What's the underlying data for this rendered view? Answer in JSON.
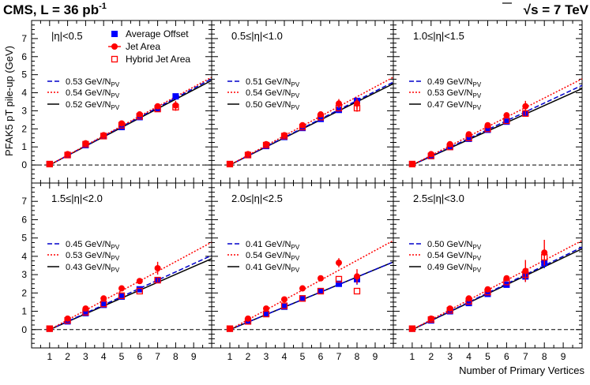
{
  "header": {
    "left_title": "CMS, L = 36 pb",
    "left_title_sup": "-1",
    "right_title_sqrt": "√",
    "right_title": "s = 7 TeV"
  },
  "y_axis_label": "PFAK5 pT pile-up (GeV)",
  "x_axis_label": "Number of Primary Vertices",
  "colors": {
    "average_offset": "#0000ff",
    "jet_area": "#ff0000",
    "hybrid_jet_area": "#ff0000",
    "fit_average": "#0000cc",
    "fit_jet_area": "#ff0000",
    "fit_hybrid": "#000000"
  },
  "legend": {
    "entries": [
      "Average Offset",
      "Jet Area",
      "Hybrid Jet Area"
    ]
  },
  "chart_data": [
    {
      "type": "scatter",
      "eta_label": "|η|<0.5",
      "x": [
        1,
        2,
        3,
        4,
        5,
        6,
        7,
        8
      ],
      "xlim": [
        0,
        10
      ],
      "ylim": [
        -1,
        8
      ],
      "xticks": [
        1,
        2,
        3,
        4,
        5,
        6,
        7,
        8,
        9
      ],
      "yticks": [
        0,
        1,
        2,
        3,
        4,
        5,
        6,
        7
      ],
      "series": [
        {
          "name": "Average Offset",
          "values": [
            0.05,
            0.55,
            1.1,
            1.6,
            2.1,
            2.65,
            3.15,
            3.8
          ],
          "errors": [
            0,
            0,
            0,
            0,
            0,
            0,
            0,
            0.1
          ]
        },
        {
          "name": "Jet Area",
          "values": [
            0.05,
            0.6,
            1.2,
            1.65,
            2.3,
            2.8,
            3.25,
            3.3
          ],
          "errors": [
            0,
            0,
            0,
            0,
            0,
            0,
            0.15,
            0.25
          ]
        },
        {
          "name": "Hybrid Jet Area",
          "values": [
            0.05,
            0.55,
            1.15,
            1.6,
            2.2,
            2.7,
            3.1,
            3.2
          ],
          "errors": [
            0,
            0,
            0,
            0,
            0,
            0,
            0,
            0.2
          ]
        }
      ],
      "fits": [
        {
          "label": "0.53 GeV/N",
          "sub": "PV",
          "slope": 0.53,
          "style": "blue-dashed"
        },
        {
          "label": "0.54 GeV/N",
          "sub": "PV",
          "slope": 0.54,
          "style": "red-dotted"
        },
        {
          "label": "0.52 GeV/N",
          "sub": "PV",
          "slope": 0.52,
          "style": "black-solid"
        }
      ]
    },
    {
      "type": "scatter",
      "eta_label": "0.5≤|η|<1.0",
      "x": [
        1,
        2,
        3,
        4,
        5,
        6,
        7,
        8
      ],
      "xlim": [
        0,
        10
      ],
      "ylim": [
        -1,
        8
      ],
      "xticks": [
        1,
        2,
        3,
        4,
        5,
        6,
        7,
        8,
        9
      ],
      "yticks": [
        0,
        1,
        2,
        3,
        4,
        5,
        6,
        7
      ],
      "series": [
        {
          "name": "Average Offset",
          "values": [
            0.05,
            0.55,
            1.05,
            1.55,
            2.05,
            2.55,
            3.05,
            3.55
          ],
          "errors": [
            0,
            0,
            0,
            0,
            0,
            0,
            0,
            0.15
          ]
        },
        {
          "name": "Jet Area",
          "values": [
            0.05,
            0.6,
            1.15,
            1.65,
            2.2,
            2.8,
            3.4,
            3.4
          ],
          "errors": [
            0,
            0,
            0,
            0,
            0,
            0.15,
            0.25,
            0.3
          ]
        },
        {
          "name": "Hybrid Jet Area",
          "values": [
            0.05,
            0.55,
            1.1,
            1.6,
            2.1,
            2.65,
            3.15,
            3.15
          ],
          "errors": [
            0,
            0,
            0,
            0,
            0,
            0,
            0,
            0.2
          ]
        }
      ],
      "fits": [
        {
          "label": "0.51 GeV/N",
          "sub": "PV",
          "slope": 0.51,
          "style": "blue-dashed"
        },
        {
          "label": "0.54 GeV/N",
          "sub": "PV",
          "slope": 0.54,
          "style": "red-dotted"
        },
        {
          "label": "0.50 GeV/N",
          "sub": "PV",
          "slope": 0.5,
          "style": "black-solid"
        }
      ]
    },
    {
      "type": "scatter",
      "eta_label": "1.0≤|η|<1.5",
      "x": [
        1,
        2,
        3,
        4,
        5,
        6,
        7
      ],
      "xlim": [
        0,
        10
      ],
      "ylim": [
        -1,
        8
      ],
      "xticks": [
        1,
        2,
        3,
        4,
        5,
        6,
        7,
        8,
        9
      ],
      "yticks": [
        0,
        1,
        2,
        3,
        4,
        5,
        6,
        7
      ],
      "series": [
        {
          "name": "Average Offset",
          "values": [
            0.05,
            0.5,
            1.0,
            1.45,
            1.95,
            2.4,
            2.85
          ],
          "errors": [
            0,
            0,
            0,
            0,
            0,
            0,
            0.1
          ]
        },
        {
          "name": "Jet Area",
          "values": [
            0.05,
            0.6,
            1.15,
            1.7,
            2.2,
            2.75,
            3.25
          ],
          "errors": [
            0,
            0,
            0,
            0,
            0,
            0.1,
            0.3
          ]
        },
        {
          "name": "Hybrid Jet Area",
          "values": [
            0.05,
            0.5,
            1.0,
            1.5,
            2.0,
            2.45,
            2.85
          ],
          "errors": [
            0,
            0,
            0,
            0,
            0,
            0,
            0.1
          ]
        }
      ],
      "fits": [
        {
          "label": "0.49 GeV/N",
          "sub": "PV",
          "slope": 0.49,
          "style": "blue-dashed"
        },
        {
          "label": "0.53 GeV/N",
          "sub": "PV",
          "slope": 0.53,
          "style": "red-dotted"
        },
        {
          "label": "0.47 GeV/N",
          "sub": "PV",
          "slope": 0.47,
          "style": "black-solid"
        }
      ]
    },
    {
      "type": "scatter",
      "eta_label": "1.5≤|η|<2.0",
      "x": [
        1,
        2,
        3,
        4,
        5,
        6,
        7
      ],
      "xlim": [
        0,
        10
      ],
      "ylim": [
        -1,
        8
      ],
      "xticks": [
        1,
        2,
        3,
        4,
        5,
        6,
        7,
        8,
        9
      ],
      "yticks": [
        0,
        1,
        2,
        3,
        4,
        5,
        6,
        7
      ],
      "series": [
        {
          "name": "Average Offset",
          "values": [
            0.05,
            0.45,
            0.9,
            1.35,
            1.8,
            2.2,
            2.7
          ],
          "errors": [
            0,
            0,
            0,
            0,
            0,
            0,
            0.1
          ]
        },
        {
          "name": "Jet Area",
          "values": [
            0.05,
            0.6,
            1.15,
            1.7,
            2.25,
            2.65,
            3.35
          ],
          "errors": [
            0,
            0,
            0,
            0,
            0,
            0,
            0.35
          ]
        },
        {
          "name": "Hybrid Jet Area",
          "values": [
            0.05,
            0.5,
            0.95,
            1.4,
            1.85,
            2.1,
            2.7
          ],
          "errors": [
            0,
            0,
            0,
            0,
            0,
            0,
            0.1
          ]
        }
      ],
      "fits": [
        {
          "label": "0.45 GeV/N",
          "sub": "PV",
          "slope": 0.45,
          "style": "blue-dashed"
        },
        {
          "label": "0.53 GeV/N",
          "sub": "PV",
          "slope": 0.53,
          "style": "red-dotted"
        },
        {
          "label": "0.43 GeV/N",
          "sub": "PV",
          "slope": 0.43,
          "style": "black-solid"
        }
      ]
    },
    {
      "type": "scatter",
      "eta_label": "2.0≤|η|<2.5",
      "x": [
        1,
        2,
        3,
        4,
        5,
        6,
        7,
        8
      ],
      "xlim": [
        0,
        10
      ],
      "ylim": [
        -1,
        8
      ],
      "xticks": [
        1,
        2,
        3,
        4,
        5,
        6,
        7,
        8,
        9
      ],
      "yticks": [
        0,
        1,
        2,
        3,
        4,
        5,
        6,
        7
      ],
      "series": [
        {
          "name": "Average Offset",
          "values": [
            0.05,
            0.45,
            0.85,
            1.25,
            1.7,
            2.1,
            2.5,
            2.75
          ],
          "errors": [
            0,
            0,
            0,
            0,
            0,
            0,
            0.1,
            0.3
          ]
        },
        {
          "name": "Jet Area",
          "values": [
            0.05,
            0.6,
            1.15,
            1.65,
            2.25,
            2.8,
            3.65,
            2.9
          ],
          "errors": [
            0,
            0,
            0,
            0,
            0,
            0,
            0.25,
            0.4
          ]
        },
        {
          "name": "Hybrid Jet Area",
          "values": [
            0.05,
            0.45,
            0.85,
            1.3,
            1.7,
            2.1,
            2.75,
            2.1
          ],
          "errors": [
            0,
            0,
            0,
            0,
            0,
            0,
            0,
            0
          ]
        }
      ],
      "fits": [
        {
          "label": "0.41 GeV/N",
          "sub": "PV",
          "slope": 0.41,
          "style": "blue-dashed"
        },
        {
          "label": "0.54 GeV/N",
          "sub": "PV",
          "slope": 0.54,
          "style": "red-dotted"
        },
        {
          "label": "0.41 GeV/N",
          "sub": "PV",
          "slope": 0.41,
          "style": "black-solid"
        }
      ]
    },
    {
      "type": "scatter",
      "eta_label": "2.5≤|η|<3.0",
      "x": [
        1,
        2,
        3,
        4,
        5,
        6,
        7,
        8
      ],
      "xlim": [
        0,
        10
      ],
      "ylim": [
        -1,
        8
      ],
      "xticks": [
        1,
        2,
        3,
        4,
        5,
        6,
        7,
        8,
        9
      ],
      "yticks": [
        0,
        1,
        2,
        3,
        4,
        5,
        6,
        7
      ],
      "series": [
        {
          "name": "Average Offset",
          "values": [
            0.05,
            0.5,
            1.0,
            1.45,
            1.95,
            2.45,
            2.9,
            3.65
          ],
          "errors": [
            0,
            0,
            0,
            0,
            0,
            0,
            0.3,
            0.3
          ]
        },
        {
          "name": "Jet Area",
          "values": [
            0.05,
            0.6,
            1.15,
            1.7,
            2.2,
            2.8,
            3.2,
            4.2
          ],
          "errors": [
            0,
            0,
            0,
            0,
            0,
            0.15,
            0.6,
            0.7
          ]
        },
        {
          "name": "Hybrid Jet Area",
          "values": [
            0.05,
            0.55,
            1.05,
            1.55,
            2.05,
            2.6,
            3.0,
            3.95
          ],
          "errors": [
            0,
            0,
            0,
            0,
            0,
            0,
            0.2,
            0.3
          ]
        }
      ],
      "fits": [
        {
          "label": "0.50 GeV/N",
          "sub": "PV",
          "slope": 0.5,
          "style": "blue-dashed"
        },
        {
          "label": "0.54 GeV/N",
          "sub": "PV",
          "slope": 0.54,
          "style": "red-dotted"
        },
        {
          "label": "0.49 GeV/N",
          "sub": "PV",
          "slope": 0.49,
          "style": "black-solid"
        }
      ]
    }
  ]
}
